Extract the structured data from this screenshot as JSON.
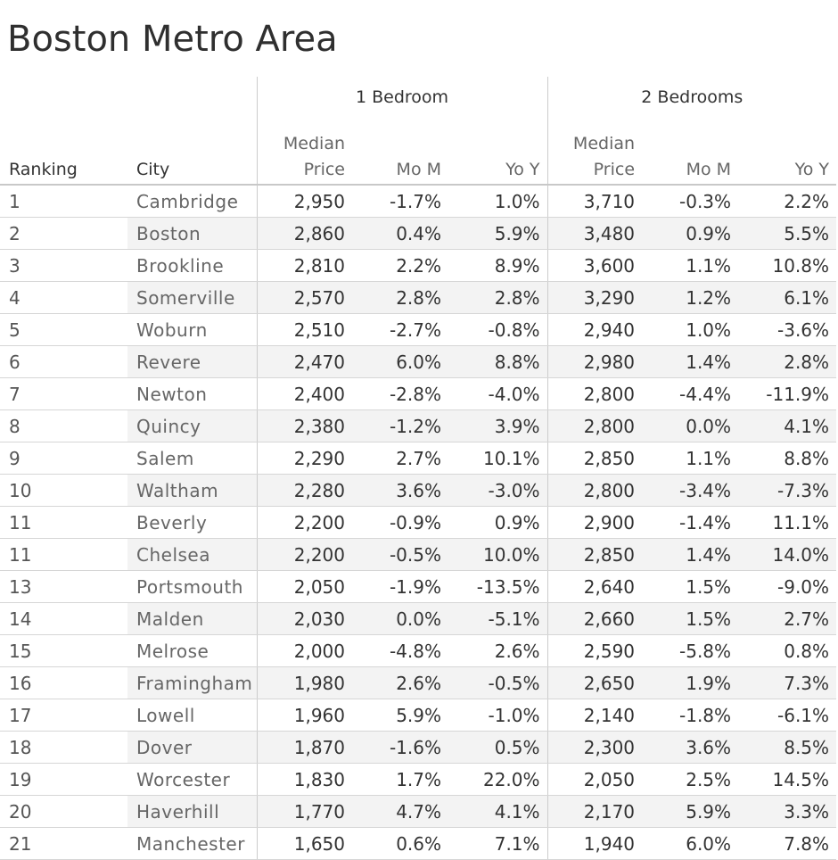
{
  "title": "Boston Metro Area",
  "chart_data": {
    "type": "table",
    "title": "Boston Metro Area",
    "column_groups": [
      {
        "label": "1 Bedroom",
        "columns": [
          "Median Price",
          "Mo M",
          "Yo Y"
        ]
      },
      {
        "label": "2 Bedrooms",
        "columns": [
          "Median Price",
          "Mo M",
          "Yo Y"
        ]
      }
    ],
    "headers": {
      "ranking": "Ranking",
      "city": "City",
      "median_top": "Median",
      "median_bottom": "Price",
      "mom": "Mo M",
      "yoy": "Yo Y",
      "group1": "1 Bedroom",
      "group2": "2 Bedrooms"
    },
    "rows": [
      {
        "rank": "1",
        "city": "Cambridge",
        "b1_price": "2,950",
        "b1_mom": "-1.7%",
        "b1_yoy": "1.0%",
        "b2_price": "3,710",
        "b2_mom": "-0.3%",
        "b2_yoy": "2.2%"
      },
      {
        "rank": "2",
        "city": "Boston",
        "b1_price": "2,860",
        "b1_mom": "0.4%",
        "b1_yoy": "5.9%",
        "b2_price": "3,480",
        "b2_mom": "0.9%",
        "b2_yoy": "5.5%"
      },
      {
        "rank": "3",
        "city": "Brookline",
        "b1_price": "2,810",
        "b1_mom": "2.2%",
        "b1_yoy": "8.9%",
        "b2_price": "3,600",
        "b2_mom": "1.1%",
        "b2_yoy": "10.8%"
      },
      {
        "rank": "4",
        "city": "Somerville",
        "b1_price": "2,570",
        "b1_mom": "2.8%",
        "b1_yoy": "2.8%",
        "b2_price": "3,290",
        "b2_mom": "1.2%",
        "b2_yoy": "6.1%"
      },
      {
        "rank": "5",
        "city": "Woburn",
        "b1_price": "2,510",
        "b1_mom": "-2.7%",
        "b1_yoy": "-0.8%",
        "b2_price": "2,940",
        "b2_mom": "1.0%",
        "b2_yoy": "-3.6%"
      },
      {
        "rank": "6",
        "city": "Revere",
        "b1_price": "2,470",
        "b1_mom": "6.0%",
        "b1_yoy": "8.8%",
        "b2_price": "2,980",
        "b2_mom": "1.4%",
        "b2_yoy": "2.8%"
      },
      {
        "rank": "7",
        "city": "Newton",
        "b1_price": "2,400",
        "b1_mom": "-2.8%",
        "b1_yoy": "-4.0%",
        "b2_price": "2,800",
        "b2_mom": "-4.4%",
        "b2_yoy": "-11.9%"
      },
      {
        "rank": "8",
        "city": "Quincy",
        "b1_price": "2,380",
        "b1_mom": "-1.2%",
        "b1_yoy": "3.9%",
        "b2_price": "2,800",
        "b2_mom": "0.0%",
        "b2_yoy": "4.1%"
      },
      {
        "rank": "9",
        "city": "Salem",
        "b1_price": "2,290",
        "b1_mom": "2.7%",
        "b1_yoy": "10.1%",
        "b2_price": "2,850",
        "b2_mom": "1.1%",
        "b2_yoy": "8.8%"
      },
      {
        "rank": "10",
        "city": "Waltham",
        "b1_price": "2,280",
        "b1_mom": "3.6%",
        "b1_yoy": "-3.0%",
        "b2_price": "2,800",
        "b2_mom": "-3.4%",
        "b2_yoy": "-7.3%"
      },
      {
        "rank": "11",
        "city": "Beverly",
        "b1_price": "2,200",
        "b1_mom": "-0.9%",
        "b1_yoy": "0.9%",
        "b2_price": "2,900",
        "b2_mom": "-1.4%",
        "b2_yoy": "11.1%"
      },
      {
        "rank": "11",
        "city": "Chelsea",
        "b1_price": "2,200",
        "b1_mom": "-0.5%",
        "b1_yoy": "10.0%",
        "b2_price": "2,850",
        "b2_mom": "1.4%",
        "b2_yoy": "14.0%"
      },
      {
        "rank": "13",
        "city": "Portsmouth",
        "b1_price": "2,050",
        "b1_mom": "-1.9%",
        "b1_yoy": "-13.5%",
        "b2_price": "2,640",
        "b2_mom": "1.5%",
        "b2_yoy": "-9.0%"
      },
      {
        "rank": "14",
        "city": "Malden",
        "b1_price": "2,030",
        "b1_mom": "0.0%",
        "b1_yoy": "-5.1%",
        "b2_price": "2,660",
        "b2_mom": "1.5%",
        "b2_yoy": "2.7%"
      },
      {
        "rank": "15",
        "city": "Melrose",
        "b1_price": "2,000",
        "b1_mom": "-4.8%",
        "b1_yoy": "2.6%",
        "b2_price": "2,590",
        "b2_mom": "-5.8%",
        "b2_yoy": "0.8%"
      },
      {
        "rank": "16",
        "city": "Framingham",
        "b1_price": "1,980",
        "b1_mom": "2.6%",
        "b1_yoy": "-0.5%",
        "b2_price": "2,650",
        "b2_mom": "1.9%",
        "b2_yoy": "7.3%"
      },
      {
        "rank": "17",
        "city": "Lowell",
        "b1_price": "1,960",
        "b1_mom": "5.9%",
        "b1_yoy": "-1.0%",
        "b2_price": "2,140",
        "b2_mom": "-1.8%",
        "b2_yoy": "-6.1%"
      },
      {
        "rank": "18",
        "city": "Dover",
        "b1_price": "1,870",
        "b1_mom": "-1.6%",
        "b1_yoy": "0.5%",
        "b2_price": "2,300",
        "b2_mom": "3.6%",
        "b2_yoy": "8.5%"
      },
      {
        "rank": "19",
        "city": "Worcester",
        "b1_price": "1,830",
        "b1_mom": "1.7%",
        "b1_yoy": "22.0%",
        "b2_price": "2,050",
        "b2_mom": "2.5%",
        "b2_yoy": "14.5%"
      },
      {
        "rank": "20",
        "city": "Haverhill",
        "b1_price": "1,770",
        "b1_mom": "4.7%",
        "b1_yoy": "4.1%",
        "b2_price": "2,170",
        "b2_mom": "5.9%",
        "b2_yoy": "3.3%"
      },
      {
        "rank": "21",
        "city": "Manchester",
        "b1_price": "1,650",
        "b1_mom": "0.6%",
        "b1_yoy": "7.1%",
        "b2_price": "1,940",
        "b2_mom": "6.0%",
        "b2_yoy": "7.8%"
      }
    ]
  }
}
